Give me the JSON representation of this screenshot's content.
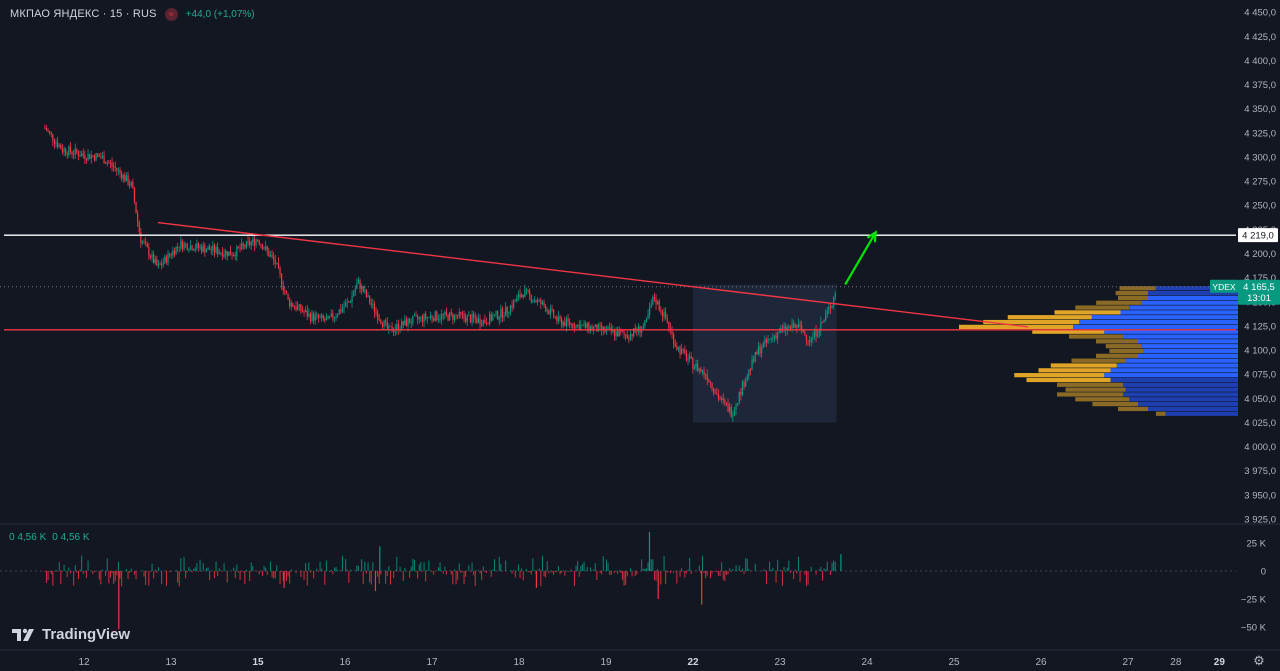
{
  "header": {
    "symbol": "МКПАО ЯНДЕКС · 15 · RUS",
    "badge": "≈",
    "change": "+44,0 (+1,07%)"
  },
  "volume_header": {
    "a": "0 4,56 K",
    "b": "0 4,56 K"
  },
  "brand": {
    "name": "TradingView"
  },
  "chart_data": {
    "type": "candlestick",
    "timeframe": "15",
    "price_axis": {
      "range": [
        3915,
        4460
      ],
      "ticks": [
        "4 450,0",
        "4 425,0",
        "4 400,0",
        "4 375,0",
        "4 350,0",
        "4 325,0",
        "4 300,0",
        "4 275,0",
        "4 250,0",
        "4 225,0",
        "4 200,0",
        "4 175,0",
        "4 150,0",
        "4 125,0",
        "4 100,0",
        "4 075,0",
        "4 050,0",
        "4 025,0",
        "4 000,0",
        "3 975,0",
        "3 950,0",
        "3 925,0"
      ]
    },
    "volume_axis": {
      "ticks": [
        "25 K",
        "0",
        "−25 K",
        "−50 K"
      ]
    },
    "x_ticks": [
      {
        "day": 12,
        "label": "12",
        "bold": false
      },
      {
        "day": 13,
        "label": "13",
        "bold": false
      },
      {
        "day": 14,
        "label": "15",
        "bold": true
      },
      {
        "day": 15,
        "label": "16",
        "bold": false
      },
      {
        "day": 16,
        "label": "17",
        "bold": false
      },
      {
        "day": 17,
        "label": "18",
        "bold": false
      },
      {
        "day": 18,
        "label": "19",
        "bold": false
      },
      {
        "day": 19,
        "label": "22",
        "bold": true
      },
      {
        "day": 20,
        "label": "23",
        "bold": false
      },
      {
        "day": 21,
        "label": "24",
        "bold": false
      },
      {
        "day": 22,
        "label": "25",
        "bold": false
      },
      {
        "day": 23,
        "label": "26",
        "bold": false
      },
      {
        "day": 24,
        "label": "27",
        "bold": false
      },
      {
        "day": 24.55,
        "label": "28",
        "bold": false
      },
      {
        "day": 25.05,
        "label": "29",
        "bold": true
      }
    ],
    "price_path": [
      [
        11.55,
        4330
      ],
      [
        11.75,
        4308
      ],
      [
        12.0,
        4302
      ],
      [
        12.2,
        4300
      ],
      [
        12.4,
        4285
      ],
      [
        12.55,
        4270
      ],
      [
        12.65,
        4215
      ],
      [
        12.85,
        4185
      ],
      [
        13.1,
        4210
      ],
      [
        13.4,
        4205
      ],
      [
        13.7,
        4200
      ],
      [
        14.0,
        4215
      ],
      [
        14.2,
        4190
      ],
      [
        14.35,
        4150
      ],
      [
        14.6,
        4135
      ],
      [
        14.8,
        4130
      ],
      [
        15.05,
        4150
      ],
      [
        15.15,
        4170
      ],
      [
        15.35,
        4140
      ],
      [
        15.5,
        4120
      ],
      [
        15.75,
        4130
      ],
      [
        16.0,
        4135
      ],
      [
        16.3,
        4135
      ],
      [
        16.6,
        4130
      ],
      [
        16.85,
        4140
      ],
      [
        17.05,
        4160
      ],
      [
        17.3,
        4145
      ],
      [
        17.45,
        4130
      ],
      [
        17.7,
        4125
      ],
      [
        18.0,
        4120
      ],
      [
        18.25,
        4115
      ],
      [
        18.45,
        4125
      ],
      [
        18.55,
        4155
      ],
      [
        18.7,
        4130
      ],
      [
        18.8,
        4105
      ],
      [
        19.0,
        4085
      ],
      [
        19.15,
        4075
      ],
      [
        19.3,
        4050
      ],
      [
        19.45,
        4035
      ],
      [
        19.6,
        4070
      ],
      [
        19.75,
        4100
      ],
      [
        20.0,
        4120
      ],
      [
        20.2,
        4125
      ],
      [
        20.35,
        4110
      ],
      [
        20.5,
        4130
      ],
      [
        20.6,
        4150
      ],
      [
        20.65,
        4165.5
      ]
    ],
    "levels": [
      {
        "name": "resistance",
        "price": 4219.0,
        "label": "4 219,0",
        "color": "#ffffff"
      },
      {
        "name": "support",
        "price": 4121.0,
        "color": "#f23645"
      },
      {
        "name": "last",
        "price": 4165.5,
        "color": "#787b86"
      }
    ],
    "trendline": {
      "from": [
        12.85,
        4232
      ],
      "to": [
        22.85,
        4124
      ],
      "color": "#f23645"
    },
    "arrow": {
      "from": [
        20.75,
        4168
      ],
      "to": [
        21.1,
        4222
      ],
      "color": "#00e600"
    },
    "highlight": {
      "x": [
        19.0,
        20.65
      ],
      "price": [
        4025,
        4168
      ]
    },
    "last_price": {
      "ticker": "YDEX",
      "price": "4 165,5",
      "countdown": "13:01",
      "color": "#089981"
    },
    "volume_profile": {
      "price_range": [
        4030,
        4168
      ],
      "rows": [
        [
          4164,
          0.3,
          0.14,
          0.09
        ],
        [
          4159,
          0.27,
          0.2,
          0.08
        ],
        [
          4154,
          0.25,
          0.2,
          0.12
        ],
        [
          4149,
          0.38,
          0.25,
          0.28
        ],
        [
          4144,
          0.45,
          0.35,
          0.32
        ],
        [
          4139,
          0.55,
          0.42,
          0.4
        ],
        [
          4134,
          0.7,
          0.65,
          0.55
        ],
        [
          4129,
          0.8,
          0.75,
          0.62
        ],
        [
          4124,
          0.95,
          0.8,
          1.0
        ],
        [
          4119,
          0.6,
          0.55,
          0.7
        ],
        [
          4114,
          0.45,
          0.4,
          0.3
        ],
        [
          4109,
          0.35,
          0.28,
          0.22
        ],
        [
          4104,
          0.3,
          0.25,
          0.2
        ],
        [
          4099,
          0.28,
          0.24,
          0.18
        ],
        [
          4094,
          0.35,
          0.28,
          0.22
        ],
        [
          4089,
          0.45,
          0.38,
          0.35
        ],
        [
          4084,
          0.55,
          0.45,
          0.38
        ],
        [
          4079,
          0.6,
          0.5,
          0.42
        ],
        [
          4074,
          0.75,
          0.55,
          0.6
        ],
        [
          4069,
          0.7,
          0.5,
          0.45
        ],
        [
          4064,
          0.55,
          0.4,
          0.3
        ],
        [
          4059,
          0.5,
          0.38,
          0.25
        ],
        [
          4054,
          0.55,
          0.4,
          0.28
        ],
        [
          4049,
          0.45,
          0.35,
          0.25
        ],
        [
          4044,
          0.38,
          0.28,
          0.2
        ],
        [
          4039,
          0.25,
          0.2,
          0.12
        ],
        [
          4034,
          0.08,
          0.06,
          0.04
        ]
      ],
      "colors": {
        "up": "#2962ff",
        "down": "#e0a526",
        "up_va": "#1e3fb0",
        "down_va": "#8a6a24"
      }
    },
    "colors": {
      "up": "#089981",
      "down": "#f23645"
    }
  }
}
